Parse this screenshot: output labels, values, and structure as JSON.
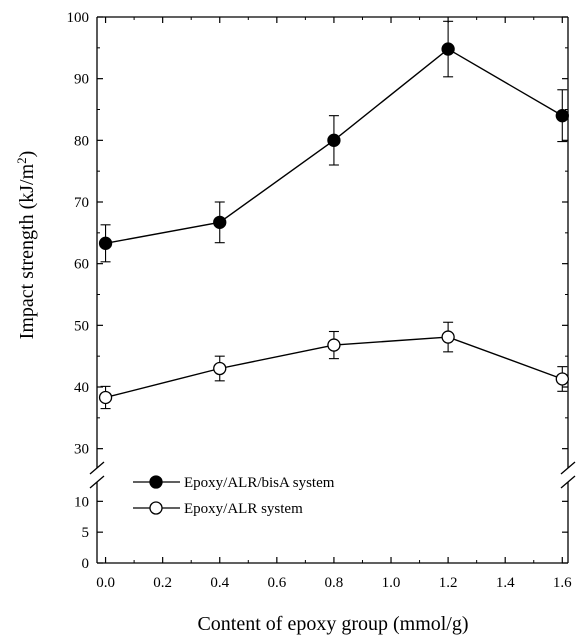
{
  "chart_data": {
    "type": "line",
    "xlabel": "Content of epoxy group (mmol/g)",
    "ylabel_main": "Impact strength (kJ/m",
    "ylabel_sup": "2",
    "ylabel_end": ")",
    "x_ticks": [
      "0.0",
      "0.2",
      "0.4",
      "0.6",
      "0.8",
      "1.0",
      "1.2",
      "1.4",
      "1.6"
    ],
    "y_ticks_upper": [
      "30",
      "40",
      "50",
      "60",
      "70",
      "80",
      "90",
      "100"
    ],
    "y_ticks_lower": [
      "0",
      "5",
      "10"
    ],
    "xlim": [
      -0.03,
      1.62
    ],
    "ylim_upper": [
      28,
      100
    ],
    "ylim_lower": [
      0,
      12
    ],
    "axis_break": true,
    "grid": false,
    "legend_position": "bottom-left",
    "series": [
      {
        "name": "Epoxy/ALR/bisA system",
        "marker": "filled-circle",
        "x": [
          0.0,
          0.4,
          0.8,
          1.2,
          1.6
        ],
        "y": [
          63.3,
          66.7,
          80.0,
          94.8,
          84.0
        ],
        "err": [
          3.0,
          3.3,
          4.0,
          4.5,
          4.2
        ]
      },
      {
        "name": "Epoxy/ALR system",
        "marker": "open-circle",
        "x": [
          0.0,
          0.4,
          0.8,
          1.2,
          1.6
        ],
        "y": [
          38.3,
          43.0,
          46.8,
          48.1,
          41.3
        ],
        "err": [
          1.8,
          2.0,
          2.2,
          2.4,
          2.0
        ]
      }
    ]
  }
}
